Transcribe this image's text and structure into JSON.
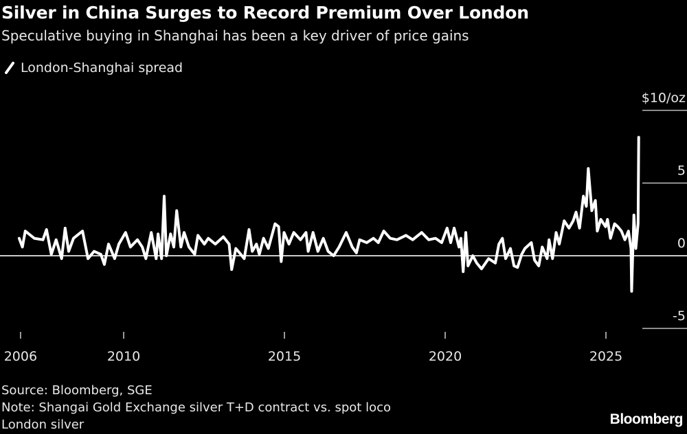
{
  "title": "Silver in China Surges to Record Premium Over London",
  "subtitle": "Speculative buying in Shanghai has been a key driver of price gains",
  "footer": {
    "source": "Source: Bloomberg, SGE",
    "note_line1": "Note: Shangai Gold Exchange silver T+D contract vs. spot loco",
    "note_line2": "London silver",
    "logo": "Bloomberg"
  },
  "chart_data": {
    "type": "line",
    "title": "Silver in China Surges to Record Premium Over London",
    "xlabel": "",
    "ylabel": "",
    "y_unit_label": "$10/oz",
    "ylim": [
      -5.5,
      10.5
    ],
    "y_ticks": [
      {
        "value": 10,
        "label": "$10/oz"
      },
      {
        "value": 5,
        "label": "5"
      },
      {
        "value": 0,
        "label": "0"
      },
      {
        "value": -5,
        "label": "-5"
      }
    ],
    "x_ticks": [
      {
        "value": 2006,
        "label": "2006"
      },
      {
        "value": 2010,
        "label": "2010"
      },
      {
        "value": 2015,
        "label": "2015"
      },
      {
        "value": 2020,
        "label": "2020"
      },
      {
        "value": 2025,
        "label": "2025"
      }
    ],
    "grid": "y-only, short right-side ticks; zero line full width",
    "legend_position": "top-left",
    "colors": {
      "line": "#ffffff",
      "background": "#000000",
      "zero_line": "#cccccc"
    },
    "series": [
      {
        "name": "London-Shanghai spread",
        "x": [
          2006.75,
          2006.85,
          2006.94,
          2007.22,
          2007.49,
          2007.6,
          2007.75,
          2007.9,
          2008.07,
          2008.18,
          2008.29,
          2008.44,
          2008.61,
          2008.72,
          2008.89,
          2009.08,
          2009.29,
          2009.4,
          2009.53,
          2009.72,
          2009.85,
          2010.06,
          2010.21,
          2010.43,
          2010.58,
          2010.69,
          2010.86,
          2011.01,
          2011.07,
          2011.18,
          2011.26,
          2011.33,
          2011.46,
          2011.56,
          2011.65,
          2011.78,
          2011.88,
          2012.03,
          2012.21,
          2012.31,
          2012.51,
          2012.63,
          2012.85,
          2013.1,
          2013.28,
          2013.36,
          2013.49,
          2013.64,
          2013.75,
          2013.9,
          2014.0,
          2014.13,
          2014.22,
          2014.35,
          2014.5,
          2014.71,
          2014.82,
          2014.9,
          2014.99,
          2015.14,
          2015.29,
          2015.5,
          2015.67,
          2015.74,
          2015.89,
          2016.04,
          2016.21,
          2016.36,
          2016.53,
          2016.7,
          2016.92,
          2017.11,
          2017.24,
          2017.34,
          2017.56,
          2017.77,
          2017.92,
          2018.09,
          2018.29,
          2018.5,
          2018.78,
          2018.99,
          2019.27,
          2019.49,
          2019.7,
          2019.89,
          2020.06,
          2020.17,
          2020.28,
          2020.43,
          2020.49,
          2020.56,
          2020.64,
          2020.71,
          2020.86,
          2020.98,
          2021.13,
          2021.35,
          2021.56,
          2021.67,
          2021.78,
          2021.88,
          2022.03,
          2022.14,
          2022.25,
          2022.38,
          2022.48,
          2022.68,
          2022.78,
          2022.91,
          2023.02,
          2023.17,
          2023.23,
          2023.34,
          2023.45,
          2023.55,
          2023.7,
          2023.85,
          2023.98,
          2024.07,
          2024.18,
          2024.3,
          2024.39,
          2024.45,
          2024.56,
          2024.67,
          2024.73,
          2024.84,
          2024.99,
          2025.05,
          2025.14,
          2025.27,
          2025.37,
          2025.48,
          2025.59,
          2025.7,
          2025.78,
          2025.8,
          2025.87,
          2025.93,
          2026.0,
          2026.02
        ],
        "y": [
          1.2,
          0.6,
          1.7,
          1.2,
          1.1,
          1.8,
          0.1,
          1.1,
          -0.2,
          1.9,
          0.3,
          1.2,
          1.5,
          1.7,
          -0.2,
          0.3,
          0.1,
          -0.6,
          0.8,
          -0.2,
          0.8,
          1.6,
          0.6,
          1.1,
          0.6,
          -0.2,
          1.6,
          -0.2,
          1.5,
          -0.2,
          4.1,
          0.0,
          1.5,
          0.6,
          3.1,
          0.6,
          1.6,
          0.6,
          0.1,
          1.4,
          0.8,
          1.2,
          0.8,
          1.3,
          0.8,
          -0.95,
          0.5,
          0.1,
          -0.2,
          1.8,
          0.3,
          0.8,
          0.1,
          1.2,
          0.5,
          2.2,
          2.0,
          -0.4,
          1.6,
          0.8,
          1.6,
          1.1,
          1.6,
          0.3,
          1.6,
          0.3,
          1.2,
          0.3,
          0.0,
          0.6,
          1.6,
          0.6,
          0.2,
          1.1,
          0.9,
          1.2,
          0.9,
          1.7,
          1.2,
          1.1,
          1.4,
          1.1,
          1.6,
          1.1,
          1.2,
          0.9,
          1.9,
          0.9,
          1.9,
          0.6,
          1.2,
          -1.1,
          1.6,
          -0.7,
          0.0,
          -0.5,
          -0.9,
          -0.2,
          -0.5,
          0.8,
          1.2,
          -0.2,
          0.5,
          -0.7,
          -0.8,
          0.1,
          0.5,
          0.9,
          -0.3,
          -0.7,
          0.6,
          -0.2,
          1.1,
          -0.2,
          1.6,
          0.8,
          2.4,
          1.9,
          2.4,
          3.0,
          1.9,
          4.1,
          3.4,
          6.0,
          3.1,
          3.8,
          1.7,
          2.5,
          2.0,
          2.5,
          1.2,
          2.2,
          2.0,
          1.7,
          1.1,
          1.7,
          0.5,
          -2.45,
          2.8,
          0.5,
          2.2,
          8.15
        ]
      }
    ]
  }
}
